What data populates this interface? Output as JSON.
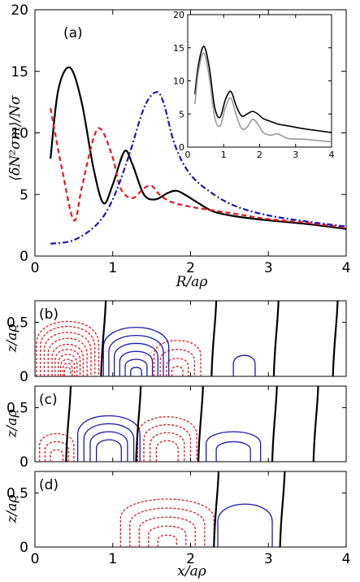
{
  "chart_data": [
    {
      "panel": "(a)",
      "type": "line",
      "ylabel": "⟨δN²σm⟩/Nσ",
      "xlabel": "R/aρ",
      "xlim": [
        0,
        4
      ],
      "ylim": [
        0,
        20
      ],
      "xticks": [
        "0",
        "1",
        "2",
        "3",
        "4"
      ],
      "yticks": [
        "0",
        "5",
        "10",
        "15",
        "20"
      ],
      "colors": {
        "solid": "#000000",
        "dashed": "#e8141e",
        "dashdot": "#1a1aa6"
      },
      "series": [
        {
          "style": "solid",
          "color": "#000000",
          "x": [
            0.2,
            0.3,
            0.45,
            0.6,
            0.75,
            0.88,
            1.0,
            1.15,
            1.25,
            1.4,
            1.55,
            1.7,
            1.82,
            1.95,
            2.1,
            2.3,
            2.6,
            3.0,
            3.5,
            4.0
          ],
          "y": [
            7.9,
            13.5,
            15.3,
            12.5,
            7.2,
            4.3,
            5.8,
            8.5,
            7.5,
            5.0,
            4.6,
            5.1,
            5.3,
            4.9,
            4.3,
            3.6,
            3.2,
            2.9,
            2.6,
            2.2
          ]
        },
        {
          "style": "dashed",
          "color": "#e8141e",
          "x": [
            0.2,
            0.35,
            0.5,
            0.6,
            0.75,
            0.85,
            1.0,
            1.1,
            1.25,
            1.4,
            1.5,
            1.6,
            1.75,
            2.0,
            2.3,
            2.6,
            3.0,
            3.5,
            4.0
          ],
          "y": [
            12.0,
            7.0,
            2.9,
            5.5,
            9.5,
            10.3,
            8.0,
            5.5,
            4.7,
            5.5,
            5.7,
            5.0,
            4.4,
            4.0,
            3.7,
            3.4,
            3.0,
            2.7,
            2.3
          ]
        },
        {
          "style": "dashdot",
          "color": "#1a1aa6",
          "x": [
            0.2,
            0.5,
            0.8,
            1.0,
            1.2,
            1.4,
            1.55,
            1.65,
            1.8,
            2.0,
            2.3,
            2.6,
            3.0,
            3.5,
            4.0
          ],
          "y": [
            1.0,
            1.3,
            2.6,
            4.6,
            8.0,
            12.0,
            13.3,
            12.5,
            9.0,
            6.6,
            5.0,
            4.0,
            3.3,
            2.8,
            2.4
          ]
        }
      ]
    },
    {
      "panel": "inset",
      "type": "line",
      "xlim": [
        0,
        4
      ],
      "ylim": [
        0,
        20
      ],
      "xticks": [
        "0",
        "1",
        "2",
        "3",
        "4"
      ],
      "yticks": [
        "0",
        "5",
        "10",
        "15",
        "20"
      ],
      "series": [
        {
          "color": "#000000",
          "x": [
            0.2,
            0.3,
            0.45,
            0.6,
            0.75,
            0.9,
            1.05,
            1.2,
            1.35,
            1.5,
            1.65,
            1.8,
            1.95,
            2.1,
            2.3,
            2.5,
            2.8,
            3.2,
            3.6,
            4.0
          ],
          "y": [
            8.0,
            12.5,
            15.2,
            12.0,
            6.0,
            4.5,
            7.2,
            8.4,
            6.2,
            4.7,
            5.0,
            5.4,
            5.0,
            4.3,
            3.9,
            3.5,
            3.2,
            2.8,
            2.5,
            2.2
          ]
        },
        {
          "color": "#999999",
          "x": [
            0.2,
            0.3,
            0.45,
            0.6,
            0.75,
            0.9,
            1.05,
            1.2,
            1.35,
            1.5,
            1.65,
            1.8,
            1.95,
            2.1,
            2.3,
            2.5,
            2.8,
            3.2,
            3.6,
            4.0
          ],
          "y": [
            6.5,
            11.5,
            14.2,
            10.5,
            4.5,
            3.2,
            6.0,
            7.4,
            4.8,
            2.8,
            3.0,
            4.2,
            3.5,
            2.2,
            1.8,
            2.0,
            1.3,
            1.2,
            1.0,
            0.8
          ]
        }
      ]
    },
    {
      "panel": "(b)",
      "type": "contour",
      "xlim": [
        0,
        4
      ],
      "ylim": [
        0,
        0.7
      ],
      "ylabel": "z/aρ",
      "yticks": [
        "0",
        "0.5"
      ],
      "nodal_lines_x": [
        0.85,
        2.27,
        3.07,
        3.83
      ],
      "dashed_red_lobes": [
        {
          "center_x": 0.42,
          "radii_x": [
            0.4,
            0.35,
            0.3,
            0.25,
            0.2,
            0.16,
            0.12,
            0.09,
            0.06,
            0.04
          ],
          "radii_z": [
            0.55,
            0.5,
            0.44,
            0.38,
            0.32,
            0.27,
            0.22,
            0.17,
            0.13,
            0.09
          ]
        },
        {
          "center_x": 1.83,
          "radii_x": [
            0.3,
            0.22,
            0.14,
            0.07
          ],
          "radii_z": [
            0.36,
            0.27,
            0.18,
            0.1
          ]
        }
      ],
      "solid_blue_lobes": [
        {
          "center_x": 1.3,
          "radii_x": [
            0.42,
            0.35,
            0.28,
            0.21,
            0.14,
            0.07
          ],
          "radii_z": [
            0.49,
            0.41,
            0.33,
            0.25,
            0.17,
            0.09
          ]
        },
        {
          "center_x": 2.69,
          "radii_x": [
            0.14
          ],
          "radii_z": [
            0.21
          ]
        }
      ]
    },
    {
      "panel": "(c)",
      "type": "contour",
      "xlim": [
        0,
        4
      ],
      "ylim": [
        0,
        0.7
      ],
      "ylabel": "z/aρ",
      "yticks": [
        "0",
        "0.5"
      ],
      "nodal_lines_x": [
        0.4,
        1.3,
        2.1,
        3.05,
        3.58
      ],
      "dashed_red_lobes": [
        {
          "center_x": 0.28,
          "radii_x": [
            0.22,
            0.15,
            0.08
          ],
          "radii_z": [
            0.28,
            0.2,
            0.12
          ]
        },
        {
          "center_x": 1.7,
          "radii_x": [
            0.38,
            0.3,
            0.22,
            0.14
          ],
          "radii_z": [
            0.45,
            0.37,
            0.29,
            0.21
          ]
        }
      ],
      "solid_blue_lobes": [
        {
          "center_x": 0.95,
          "radii_x": [
            0.4,
            0.32,
            0.24,
            0.16
          ],
          "radii_z": [
            0.46,
            0.38,
            0.3,
            0.22
          ]
        },
        {
          "center_x": 2.55,
          "radii_x": [
            0.35,
            0.22
          ],
          "radii_z": [
            0.3,
            0.2
          ]
        }
      ]
    },
    {
      "panel": "(d)",
      "type": "contour",
      "xlim": [
        0,
        4
      ],
      "ylim": [
        0,
        0.7
      ],
      "ylabel": "z/aρ",
      "xlabel": "x/aρ",
      "xticks": [
        "0",
        "1",
        "2",
        "3",
        "4"
      ],
      "yticks": [
        "0",
        "0.5"
      ],
      "nodal_lines_x": [
        2.3,
        3.15
      ],
      "dashed_red_lobes": [
        {
          "center_x": 1.7,
          "radii_x": [
            0.6,
            0.48,
            0.36,
            0.24,
            0.12
          ],
          "radii_z": [
            0.48,
            0.39,
            0.3,
            0.21,
            0.12
          ]
        }
      ],
      "solid_blue_lobes": [
        {
          "center_x": 2.7,
          "radii_x": [
            0.35
          ],
          "radii_z": [
            0.43
          ]
        }
      ]
    }
  ]
}
